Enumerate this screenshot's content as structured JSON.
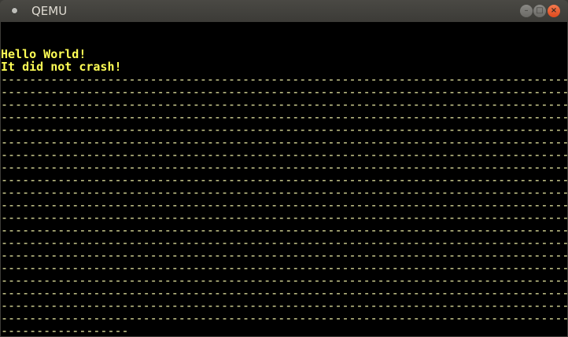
{
  "window": {
    "title": "QEMU",
    "buttons": {
      "minimize": "–",
      "maximize": "□",
      "close": "×"
    }
  },
  "screen": {
    "text_color": "#ffff55",
    "lines": [
      "",
      "",
      "Hello World!",
      "It did not crash!",
      "--------------------------------------------------------------------------------",
      "--------------------------------------------------------------------------------",
      "--------------------------------------------------------------------------------",
      "--------------------------------------------------------------------------------",
      "--------------------------------------------------------------------------------",
      "--------------------------------------------------------------------------------",
      "--------------------------------------------------------------------------------",
      "--------------------------------------------------------------------------------",
      "--------------------------------------------------------------------------------",
      "--------------------------------------------------------------------------------",
      "--------------------------------------------------------------------------------",
      "--------------------------------------------------------------------------------",
      "--------------------------------------------------------------------------------",
      "--------------------------------------------------------------------------------",
      "--------------------------------------------------------------------------------",
      "--------------------------------------------------------------------------------",
      "--------------------------------------------------------------------------------",
      "--------------------------------------------------------------------------------",
      "--------------------------------------------------------------------------------",
      "--------------------------------------------------------------------------------",
      "------------------"
    ]
  }
}
